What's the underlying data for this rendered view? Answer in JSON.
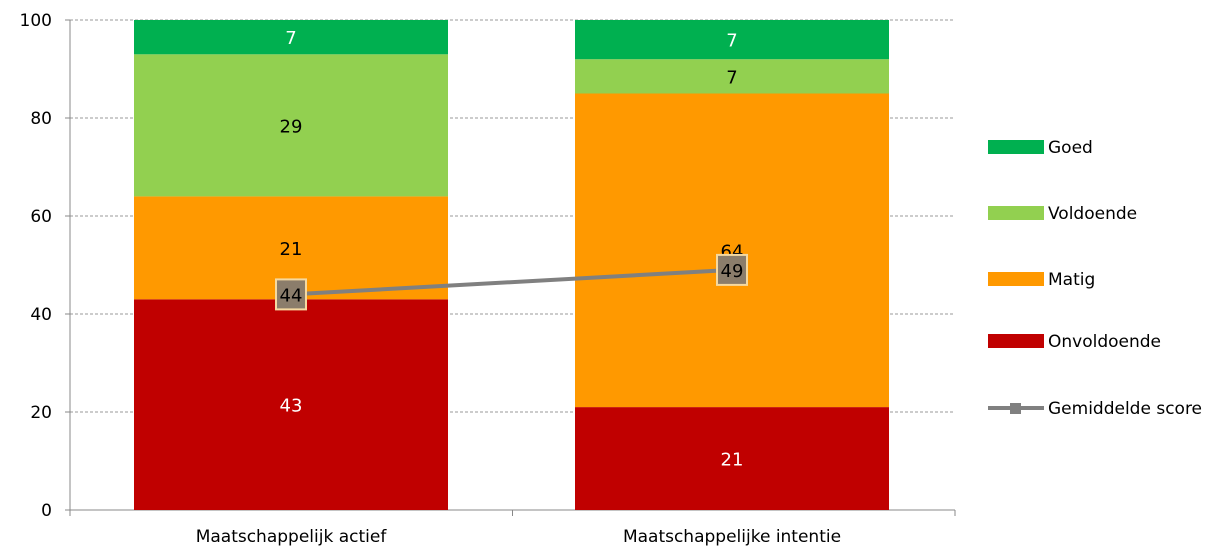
{
  "chart_data": {
    "type": "bar",
    "stacked": true,
    "categories": [
      "Maatschappelijk actief",
      "Maatschappelijke intentie"
    ],
    "series": [
      {
        "name": "Onvoldoende",
        "color": "#c00000",
        "values": [
          43,
          21
        ],
        "labels": [
          "43",
          "21"
        ],
        "label_color": "#ffffff"
      },
      {
        "name": "Matig",
        "color": "#ff9900",
        "values": [
          21,
          64
        ],
        "labels": [
          "21",
          "64"
        ],
        "label_color": "#000000"
      },
      {
        "name": "Voldoende",
        "color": "#92d050",
        "values": [
          29,
          7
        ],
        "labels": [
          "29",
          "7"
        ],
        "label_color": "#000000"
      },
      {
        "name": "Goed",
        "color": "#00b050",
        "values": [
          7,
          7
        ],
        "labels": [
          "7",
          "7"
        ],
        "label_color": "#ffffff"
      }
    ],
    "line_series": {
      "name": "Gemiddelde score",
      "color": "#808080",
      "marker_color": "#8b7d6b",
      "values": [
        44,
        49
      ],
      "labels": [
        "44",
        "49"
      ]
    },
    "ylim": [
      0,
      100
    ],
    "yticks": [
      "0",
      "20",
      "40",
      "60",
      "80",
      "100"
    ],
    "ytick_values": [
      0,
      20,
      40,
      60,
      80,
      100
    ],
    "grid": true,
    "legend_position": "right",
    "legend_order": [
      "Goed",
      "Voldoende",
      "Matig",
      "Onvoldoende",
      "Gemiddelde score"
    ],
    "title": "",
    "xlabel": "",
    "ylabel": ""
  }
}
